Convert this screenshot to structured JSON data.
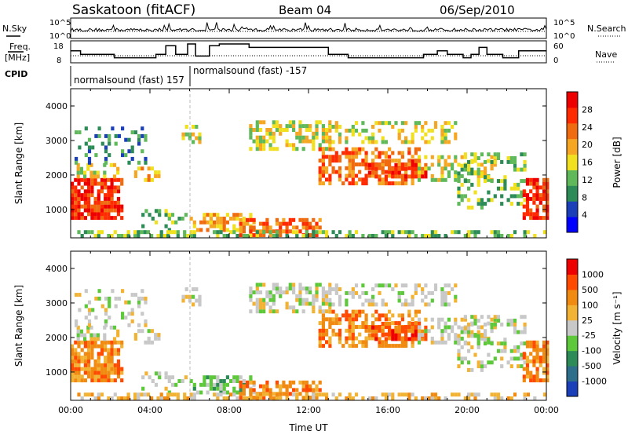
{
  "header": {
    "station": "Saskatoon (fitACF)",
    "beam": "Beam 04",
    "date": "06/Sep/2010"
  },
  "top_panels": {
    "nsky_label": "N.Sky",
    "nsky_ticks": [
      "10^5",
      "10^0"
    ],
    "nsearch_label": "N.Search",
    "nsearch_ticks": [
      "10^5",
      "10^0"
    ],
    "freq_label_1": "Freq.",
    "freq_label_2": "[MHz]",
    "freq_ticks": [
      "18",
      "8"
    ],
    "nave_label": "Nave",
    "nave_ticks": [
      "60",
      "0"
    ],
    "cpid_label": "CPID",
    "cpid_segments": [
      {
        "label": "normalsound (fast) 157",
        "start_h": 0.0,
        "end_h": 6.0
      },
      {
        "label": "normalsound (fast) -157",
        "start_h": 6.0,
        "end_h": 24.0
      }
    ],
    "freq_steps": [
      [
        0.0,
        14
      ],
      [
        0.5,
        12
      ],
      [
        2.2,
        10
      ],
      [
        4.3,
        12
      ],
      [
        4.8,
        17
      ],
      [
        5.3,
        12
      ],
      [
        5.9,
        18
      ],
      [
        6.3,
        11
      ],
      [
        7.0,
        17
      ],
      [
        7.5,
        18
      ],
      [
        9.0,
        16
      ],
      [
        13.0,
        12
      ],
      [
        14.0,
        10
      ],
      [
        17.8,
        12
      ],
      [
        18.5,
        14
      ],
      [
        19.0,
        12
      ],
      [
        19.8,
        10
      ],
      [
        20.2,
        12
      ],
      [
        20.6,
        16
      ],
      [
        21.0,
        12
      ],
      [
        21.8,
        10
      ],
      [
        22.6,
        14
      ],
      [
        24.0,
        14
      ]
    ]
  },
  "chart_data": [
    {
      "type": "heatmap",
      "title": "Power",
      "ylabel": "Slant Range [km]",
      "y_ticks": [
        "1000",
        "2000",
        "3000",
        "4000"
      ],
      "ylim": [
        180,
        4500
      ],
      "xlim": [
        0,
        24
      ],
      "colorbar_label": "Power [dB]",
      "colorbar_ticks": [
        "28",
        "24",
        "20",
        "16",
        "12",
        "8",
        "4"
      ],
      "colors": [
        "#0000ff",
        "#1a3fb8",
        "#2d8b57",
        "#5fb85a",
        "#f0e020",
        "#f5a623",
        "#f06a10",
        "#ff2a00",
        "#ee0000"
      ]
    },
    {
      "type": "heatmap",
      "title": "Velocity",
      "ylabel": "Slant Range [km]",
      "y_ticks": [
        "1000",
        "2000",
        "3000",
        "4000"
      ],
      "ylim": [
        180,
        4500
      ],
      "xlim": [
        0,
        24
      ],
      "xlabel": "Time UT",
      "x_ticks": [
        "00:00",
        "04:00",
        "08:00",
        "12:00",
        "16:00",
        "20:00",
        "00:00"
      ],
      "colorbar_label": "Velocity [m s⁻¹]",
      "colorbar_ticks": [
        "1000",
        "500",
        "100",
        "25",
        "-25",
        "-100",
        "-500",
        "-1000"
      ],
      "colors": [
        "#1a3fb8",
        "#2d6e8a",
        "#2d8b57",
        "#5cc83a",
        "#c8c8c8",
        "#f2b233",
        "#f08a10",
        "#ff4a00",
        "#ee0000"
      ]
    }
  ]
}
